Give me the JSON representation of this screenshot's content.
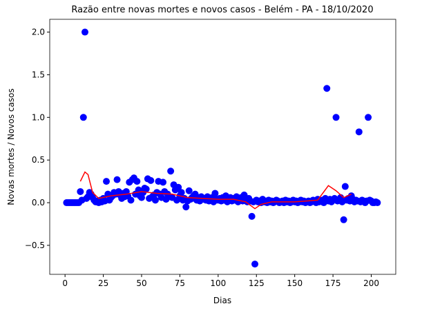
{
  "chart_data": {
    "type": "scatter",
    "title": "Razão entre novas mortes e novos casos - Belém - PA - 18/10/2020",
    "xlabel": "Dias",
    "ylabel": "Novas mortes / Novos casos",
    "xlim": [
      -10,
      216
    ],
    "ylim": [
      -0.84,
      2.15
    ],
    "xticks": [
      0,
      25,
      50,
      75,
      100,
      125,
      150,
      175,
      200
    ],
    "yticks": [
      {
        "value": -0.5,
        "label": "−0.5"
      },
      {
        "value": 0,
        "label": "0.0"
      },
      {
        "value": 0.5,
        "label": "0.5"
      },
      {
        "value": 1,
        "label": "1.0"
      },
      {
        "value": 1.5,
        "label": "1.5"
      },
      {
        "value": 2,
        "label": "2.0"
      }
    ],
    "series": [
      {
        "type": "scatter",
        "color": "#0000ff",
        "x": [
          1,
          2,
          3,
          4,
          5,
          6,
          7,
          8,
          9,
          10,
          11,
          12,
          13,
          14,
          15,
          16,
          17,
          18,
          19,
          20,
          21,
          22,
          23,
          24,
          25,
          26,
          27,
          28,
          29,
          30,
          31,
          32,
          33,
          34,
          35,
          36,
          37,
          38,
          39,
          40,
          41,
          42,
          43,
          44,
          45,
          46,
          47,
          48,
          49,
          50,
          51,
          52,
          53,
          54,
          55,
          56,
          57,
          58,
          59,
          60,
          61,
          62,
          63,
          64,
          65,
          66,
          67,
          68,
          69,
          70,
          71,
          72,
          73,
          74,
          75,
          76,
          77,
          78,
          79,
          80,
          81,
          82,
          83,
          84,
          85,
          86,
          87,
          88,
          89,
          90,
          91,
          92,
          93,
          94,
          95,
          96,
          97,
          98,
          99,
          100,
          101,
          102,
          103,
          104,
          105,
          106,
          107,
          108,
          109,
          110,
          111,
          112,
          113,
          114,
          115,
          116,
          117,
          118,
          119,
          120,
          121,
          122,
          123,
          124,
          125,
          126,
          127,
          128,
          129,
          130,
          131,
          132,
          133,
          134,
          135,
          136,
          137,
          138,
          139,
          140,
          141,
          142,
          143,
          144,
          145,
          146,
          147,
          148,
          149,
          150,
          151,
          152,
          153,
          154,
          155,
          156,
          157,
          158,
          159,
          160,
          161,
          162,
          163,
          164,
          165,
          166,
          167,
          168,
          169,
          170,
          171,
          172,
          173,
          174,
          175,
          176,
          177,
          178,
          179,
          180,
          181,
          182,
          183,
          184,
          185,
          186,
          187,
          188,
          189,
          190,
          191,
          192,
          193,
          194,
          195,
          196,
          197,
          198,
          199,
          200,
          201,
          202,
          203,
          204
        ],
        "values": [
          0,
          0,
          0,
          0,
          0,
          0,
          0,
          0,
          0,
          0.13,
          0.03,
          1.0,
          2.0,
          0.05,
          0.07,
          0.12,
          0.1,
          0.06,
          0.03,
          0.01,
          0.02,
          0,
          0.03,
          0.01,
          0.05,
          0.02,
          0.25,
          0.1,
          0.03,
          0.06,
          0.08,
          0.12,
          0.1,
          0.27,
          0.13,
          0.09,
          0.05,
          0.11,
          0.07,
          0.13,
          0.08,
          0.24,
          0.03,
          0.27,
          0.29,
          0.1,
          0.25,
          0.15,
          0.08,
          0.06,
          0.12,
          0.17,
          0.16,
          0.28,
          0.05,
          0.26,
          0.07,
          0.09,
          0.03,
          0.12,
          0.25,
          0.1,
          0.06,
          0.24,
          0.13,
          0.04,
          0.1,
          0.07,
          0.37,
          0.06,
          0.21,
          0.15,
          0.03,
          0.18,
          0.08,
          0.12,
          0.03,
          0.05,
          -0.05,
          0.02,
          0.14,
          0.04,
          0.06,
          0.08,
          0.1,
          0.03,
          0.06,
          0.02,
          0.07,
          0.04,
          0.05,
          0.03,
          0.07,
          0.02,
          0.04,
          0.06,
          0.01,
          0.11,
          0.04,
          0.03,
          0.05,
          0.02,
          0.06,
          0.03,
          0.08,
          0.01,
          0.04,
          0.06,
          0.02,
          0.05,
          0.03,
          0.07,
          0.01,
          0.04,
          0.06,
          0.02,
          0.09,
          0.03,
          0.01,
          0.05,
          0.02,
          -0.16,
          0.01,
          -0.72,
          0.03,
          0.01,
          0.02,
          0,
          0.04,
          0.01,
          0.02,
          0,
          0.03,
          0.01,
          0.02,
          0,
          0.01,
          0.03,
          0.02,
          0,
          0.01,
          0.02,
          0,
          0.03,
          0.01,
          0.02,
          0,
          0.01,
          0.03,
          0.01,
          0.02,
          0,
          0.01,
          0.03,
          0.01,
          0.02,
          0,
          0.01,
          0.02,
          0,
          0.01,
          0.03,
          0.02,
          0,
          0.04,
          0.01,
          0.02,
          0.03,
          0,
          0.05,
          1.34,
          0.02,
          0.04,
          0.01,
          0.03,
          0.05,
          1.0,
          0.02,
          0.04,
          0.06,
          0.01,
          -0.2,
          0.19,
          0.03,
          0.05,
          0.02,
          0.08,
          0.04,
          0.01,
          0.03,
          0.02,
          0.83,
          0.01,
          0.03,
          0.02,
          0,
          0.02,
          1.0,
          0.03,
          0.02,
          0,
          0,
          0.01,
          0
        ]
      },
      {
        "type": "line",
        "color": "#ff0000",
        "x": [
          10,
          13,
          15,
          18,
          22,
          30,
          40,
          50,
          60,
          70,
          80,
          90,
          100,
          110,
          118,
          124,
          128,
          135,
          150,
          165,
          172,
          177,
          182,
          187
        ],
        "values": [
          0.25,
          0.36,
          0.33,
          0.12,
          0.05,
          0.08,
          0.1,
          0.13,
          0.11,
          0.1,
          0.06,
          0.05,
          0.04,
          0.04,
          0.01,
          -0.07,
          -0.02,
          0.01,
          0.01,
          0.03,
          0.2,
          0.14,
          0.06,
          0.1
        ]
      }
    ]
  }
}
